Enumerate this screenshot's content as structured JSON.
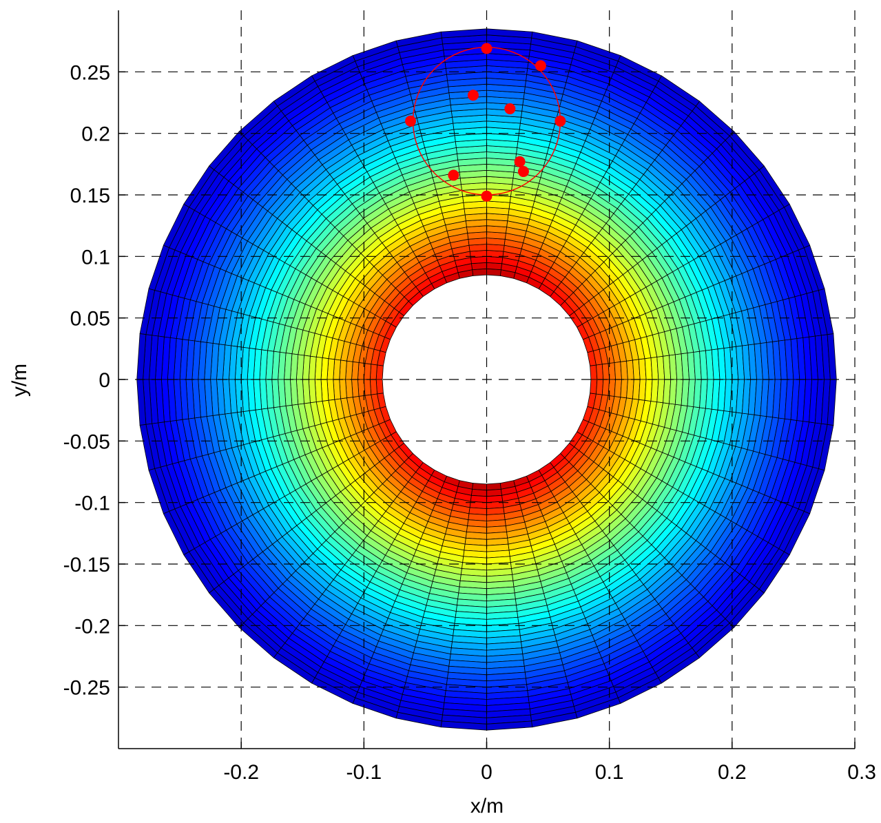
{
  "chart_data": {
    "type": "heatmap",
    "title": "",
    "xlabel": "x/m",
    "ylabel": "y/m",
    "xlim": [
      -0.3,
      0.3
    ],
    "ylim": [
      -0.3,
      0.3
    ],
    "grid": true,
    "grid_style": "dashed",
    "x_ticks": [
      -0.2,
      -0.1,
      0,
      0.1,
      0.2,
      0.3
    ],
    "x_tick_labels": [
      "-0.2",
      "-0.1",
      "0",
      "0.1",
      "0.2",
      "0.3"
    ],
    "y_ticks": [
      0.25,
      0.2,
      0.15,
      0.1,
      0.05,
      0,
      -0.05,
      -0.1,
      -0.15,
      -0.2,
      -0.25
    ],
    "y_tick_labels": [
      "0.25",
      "0.2",
      "0.15",
      "0.1",
      "0.05",
      "0",
      "-0.05",
      "-0.1",
      "-0.15",
      "-0.2",
      "-0.25"
    ],
    "field": {
      "shape": "annulus",
      "center": [
        0,
        0
      ],
      "inner_radius": 0.085,
      "outer_radius": 0.285,
      "colormap": "jet",
      "mesh_edge_color": "#000000",
      "high_at": "inner_radius",
      "low_at": "outer_radius"
    },
    "circle": {
      "center": [
        0,
        0.21
      ],
      "radius": 0.06,
      "color": "#ff0000"
    },
    "points": [
      {
        "x": 0.0,
        "y": 0.269
      },
      {
        "x": 0.044,
        "y": 0.255
      },
      {
        "x": -0.011,
        "y": 0.231
      },
      {
        "x": 0.019,
        "y": 0.22
      },
      {
        "x": -0.062,
        "y": 0.21
      },
      {
        "x": 0.06,
        "y": 0.21
      },
      {
        "x": 0.027,
        "y": 0.177
      },
      {
        "x": 0.03,
        "y": 0.169
      },
      {
        "x": -0.027,
        "y": 0.166
      },
      {
        "x": 0.0,
        "y": 0.149
      }
    ],
    "point_color": "#ff0000"
  }
}
